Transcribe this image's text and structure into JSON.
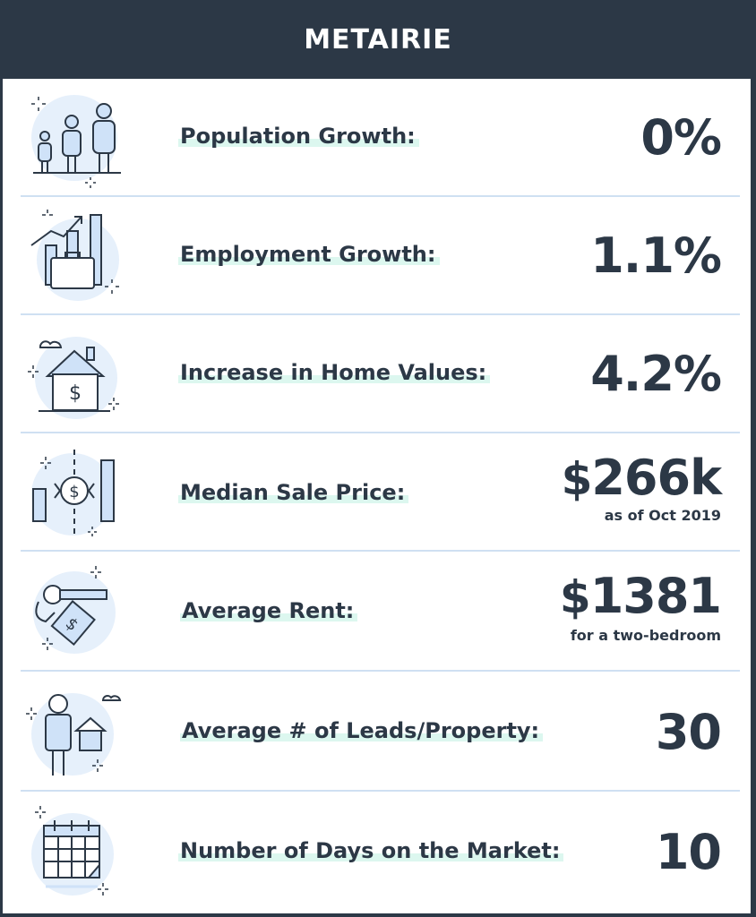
{
  "header": {
    "title": "METAIRIE"
  },
  "stats": [
    {
      "label": "Population Growth:",
      "value": "0%",
      "icon": "people-icon"
    },
    {
      "label": "Employment Growth:",
      "value": "1.1%",
      "icon": "briefcase-chart-icon"
    },
    {
      "label": "Increase in Home Values:",
      "value": "4.2%",
      "icon": "house-dollar-icon"
    },
    {
      "label": "Median Sale Price:",
      "currency": "$",
      "value": "266k",
      "note": "as of Oct 2019",
      "icon": "coin-chart-icon"
    },
    {
      "label": "Average Rent:",
      "currency": "$",
      "value": "1381",
      "note": "for a two-bedroom",
      "icon": "key-tag-icon"
    },
    {
      "label": "Average # of Leads/Property:",
      "value": "30",
      "icon": "person-house-icon"
    },
    {
      "label": "Number of Days on the Market:",
      "value": "10",
      "icon": "calendar-icon"
    }
  ],
  "colors": {
    "dark": "#2c3846",
    "accent_blue": "#cfe2f8",
    "highlight": "#dcf7ef"
  }
}
